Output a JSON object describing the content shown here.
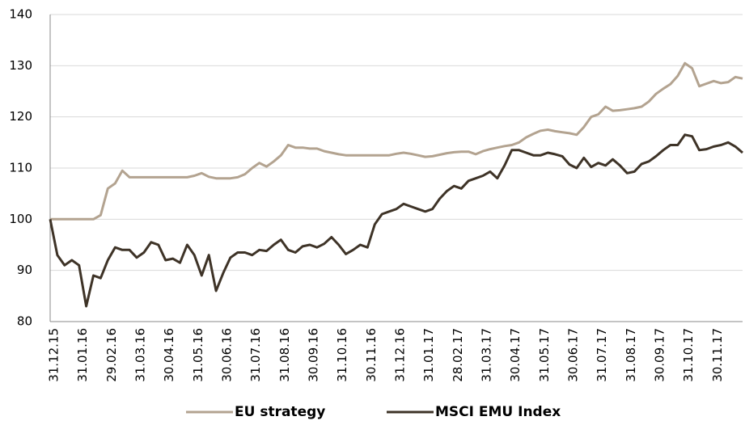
{
  "chart_data": {
    "type": "line",
    "categories": [
      "31.12.15",
      null,
      null,
      null,
      "31.01.16",
      null,
      null,
      null,
      "29.02.16",
      null,
      null,
      null,
      "31.03.16",
      null,
      null,
      null,
      "30.04.16",
      null,
      null,
      null,
      "31.05.16",
      null,
      null,
      null,
      "30.06.16",
      null,
      null,
      null,
      "31.07.16",
      null,
      null,
      null,
      "31.08.16",
      null,
      null,
      null,
      "30.09.16",
      null,
      null,
      null,
      "31.10.16",
      null,
      null,
      null,
      "30.11.16",
      null,
      null,
      null,
      "31.12.16",
      null,
      null,
      null,
      "31.01.17",
      null,
      null,
      null,
      "28.02.17",
      null,
      null,
      null,
      "31.03.17",
      null,
      null,
      null,
      "30.04.17",
      null,
      null,
      null,
      "31.05.17",
      null,
      null,
      null,
      "30.06.17",
      null,
      null,
      null,
      "31.07.17",
      null,
      null,
      null,
      "31.08.17",
      null,
      null,
      null,
      "30.09.17",
      null,
      null,
      null,
      "31.10.17",
      null,
      null,
      null,
      "30.11.17",
      null,
      null,
      null,
      null
    ],
    "series": [
      {
        "name": "EU strategy",
        "color": "#b3a390",
        "values": [
          100,
          100,
          100,
          100,
          100,
          100,
          100,
          100.8,
          106,
          107,
          109.5,
          108.2,
          108.2,
          108.2,
          108.2,
          108.2,
          108.2,
          108.2,
          108.2,
          108.2,
          108.5,
          109,
          108.3,
          108,
          108,
          108,
          108.2,
          108.8,
          110,
          111,
          110.3,
          111.3,
          112.5,
          114.5,
          114,
          114,
          113.8,
          113.8,
          113.3,
          113,
          112.7,
          112.5,
          112.5,
          112.5,
          112.5,
          112.5,
          112.5,
          112.5,
          112.8,
          113,
          112.8,
          112.5,
          112.2,
          112.3,
          112.6,
          112.9,
          113.1,
          113.2,
          113.2,
          112.7,
          113.3,
          113.7,
          114,
          114.3,
          114.5,
          115,
          116,
          116.7,
          117.3,
          117.5,
          117.2,
          117,
          116.8,
          116.5,
          118,
          120,
          120.5,
          122,
          121.2,
          121.3,
          121.5,
          121.7,
          122,
          123,
          124.5,
          125.5,
          126.4,
          128,
          130.5,
          129.5,
          126,
          126.5,
          127,
          126.6,
          126.8,
          127.8,
          127.5
        ]
      },
      {
        "name": "MSCI EMU Index",
        "color": "#3e3327",
        "values": [
          100,
          93,
          91,
          92,
          91,
          83,
          89,
          88.5,
          92,
          94.5,
          94,
          94,
          92.5,
          93.5,
          95.5,
          95,
          92,
          92.3,
          91.5,
          95,
          93,
          89,
          93,
          86,
          89.5,
          92.5,
          93.5,
          93.5,
          93,
          94,
          93.8,
          95,
          96,
          94,
          93.5,
          94.7,
          95,
          94.5,
          95.2,
          96.5,
          95,
          93.2,
          94,
          95,
          94.5,
          99,
          101,
          101.5,
          102,
          103,
          102.5,
          102,
          101.5,
          102,
          104,
          105.5,
          106.5,
          106,
          107.5,
          108,
          108.5,
          109.3,
          108,
          110.5,
          113.5,
          113.5,
          113,
          112.5,
          112.5,
          113,
          112.7,
          112.3,
          110.7,
          110,
          112,
          110.2,
          111,
          110.5,
          111.7,
          110.5,
          109,
          109.3,
          110.8,
          111.3,
          112.3,
          113.5,
          114.5,
          114.5,
          116.5,
          116.2,
          113.5,
          113.7,
          114.2,
          114.5,
          115,
          114.2,
          113
        ]
      }
    ],
    "ylim": [
      80,
      140
    ],
    "yticks": [
      80,
      90,
      100,
      110,
      120,
      130,
      140
    ],
    "grid": true,
    "legend": "bottom"
  }
}
